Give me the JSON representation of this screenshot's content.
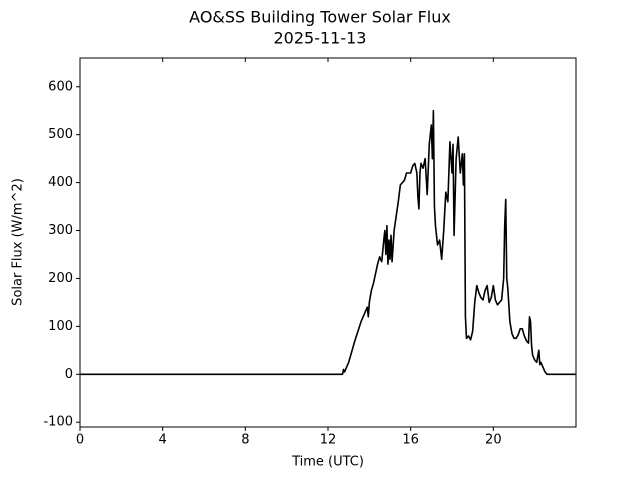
{
  "chart_data": {
    "type": "line",
    "title": "AO&SS Building Tower Solar Flux",
    "subtitle": "2025-11-13",
    "x_label": "Time (UTC)",
    "y_label": "Solar Flux (W/m^2)",
    "xlim": [
      0,
      24
    ],
    "xticks": [
      0,
      4,
      8,
      12,
      16,
      20
    ],
    "ylim": [
      -110,
      660
    ],
    "yticks": [
      -100,
      0,
      100,
      200,
      300,
      400,
      500,
      600
    ],
    "grid": false,
    "x": [
      0,
      12.7,
      12.75,
      12.8,
      13.0,
      13.3,
      13.6,
      13.8,
      13.9,
      13.95,
      14.0,
      14.1,
      14.2,
      14.3,
      14.4,
      14.5,
      14.6,
      14.7,
      14.75,
      14.8,
      14.85,
      14.9,
      14.95,
      15.0,
      15.05,
      15.1,
      15.2,
      15.3,
      15.4,
      15.5,
      15.7,
      15.8,
      16.0,
      16.1,
      16.2,
      16.3,
      16.35,
      16.4,
      16.45,
      16.5,
      16.6,
      16.7,
      16.8,
      16.9,
      17.0,
      17.05,
      17.1,
      17.15,
      17.2,
      17.3,
      17.4,
      17.5,
      17.6,
      17.7,
      17.8,
      17.9,
      18.0,
      18.05,
      18.1,
      18.2,
      18.3,
      18.4,
      18.5,
      18.55,
      18.6,
      18.65,
      18.7,
      18.8,
      18.9,
      19.0,
      19.1,
      19.2,
      19.3,
      19.4,
      19.5,
      19.6,
      19.7,
      19.8,
      19.9,
      20.0,
      20.1,
      20.2,
      20.3,
      20.4,
      20.5,
      20.55,
      20.6,
      20.65,
      20.7,
      20.8,
      20.9,
      21.0,
      21.1,
      21.2,
      21.3,
      21.4,
      21.5,
      21.6,
      21.7,
      21.75,
      21.8,
      21.85,
      21.9,
      22.0,
      22.1,
      22.2,
      22.25,
      22.3,
      22.4,
      22.5,
      22.6,
      24
    ],
    "series": [
      {
        "name": "Solar Flux",
        "color": "#000000",
        "values": [
          0,
          0,
          10,
          5,
          25,
          70,
          110,
          130,
          140,
          120,
          150,
          175,
          190,
          210,
          230,
          245,
          235,
          280,
          300,
          250,
          310,
          230,
          280,
          240,
          290,
          235,
          300,
          330,
          360,
          395,
          405,
          420,
          420,
          435,
          440,
          420,
          370,
          345,
          420,
          440,
          430,
          450,
          375,
          480,
          520,
          450,
          550,
          350,
          310,
          270,
          280,
          240,
          300,
          380,
          360,
          485,
          420,
          480,
          290,
          450,
          495,
          420,
          460,
          395,
          460,
          120,
          75,
          80,
          72,
          90,
          150,
          185,
          170,
          160,
          155,
          175,
          185,
          150,
          160,
          185,
          155,
          145,
          150,
          155,
          200,
          310,
          365,
          200,
          180,
          110,
          85,
          75,
          75,
          82,
          95,
          95,
          80,
          70,
          65,
          120,
          110,
          60,
          40,
          30,
          25,
          50,
          20,
          25,
          15,
          5,
          0,
          0
        ]
      }
    ]
  }
}
